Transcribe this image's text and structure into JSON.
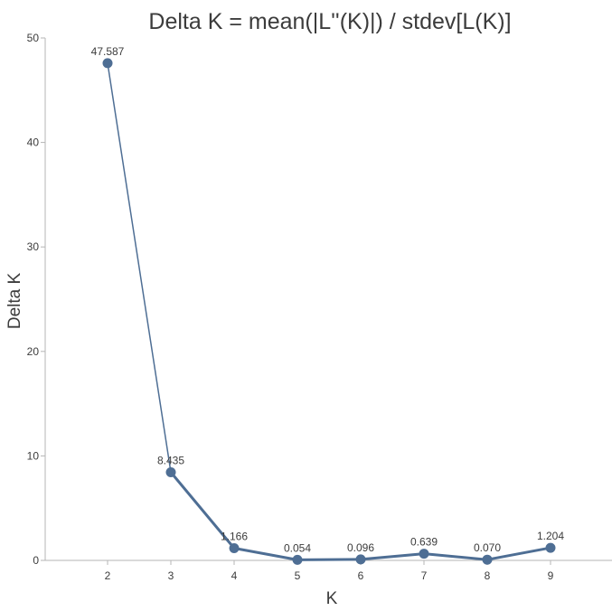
{
  "chart_data": {
    "type": "line",
    "title": "Delta K = mean(|L''(K)|) / stdev[L(K)]",
    "xlabel": "K",
    "ylabel": "Delta K",
    "x": [
      2,
      3,
      4,
      5,
      6,
      7,
      8,
      9
    ],
    "y_ticks": [
      0,
      10,
      20,
      30,
      40,
      50
    ],
    "ylim": [
      0,
      50
    ],
    "xlim": [
      1,
      10
    ],
    "grid": false,
    "legend": "none",
    "series": [
      {
        "values": [
          47.587,
          8.435,
          1.166,
          0.054,
          0.096,
          0.639,
          0.07,
          1.204
        ],
        "labels": [
          "47.587",
          "8.435",
          "1.166",
          "0.054",
          "0.096",
          "0.639",
          "0.070",
          "1.204"
        ],
        "color": "#4e6e94"
      }
    ]
  }
}
